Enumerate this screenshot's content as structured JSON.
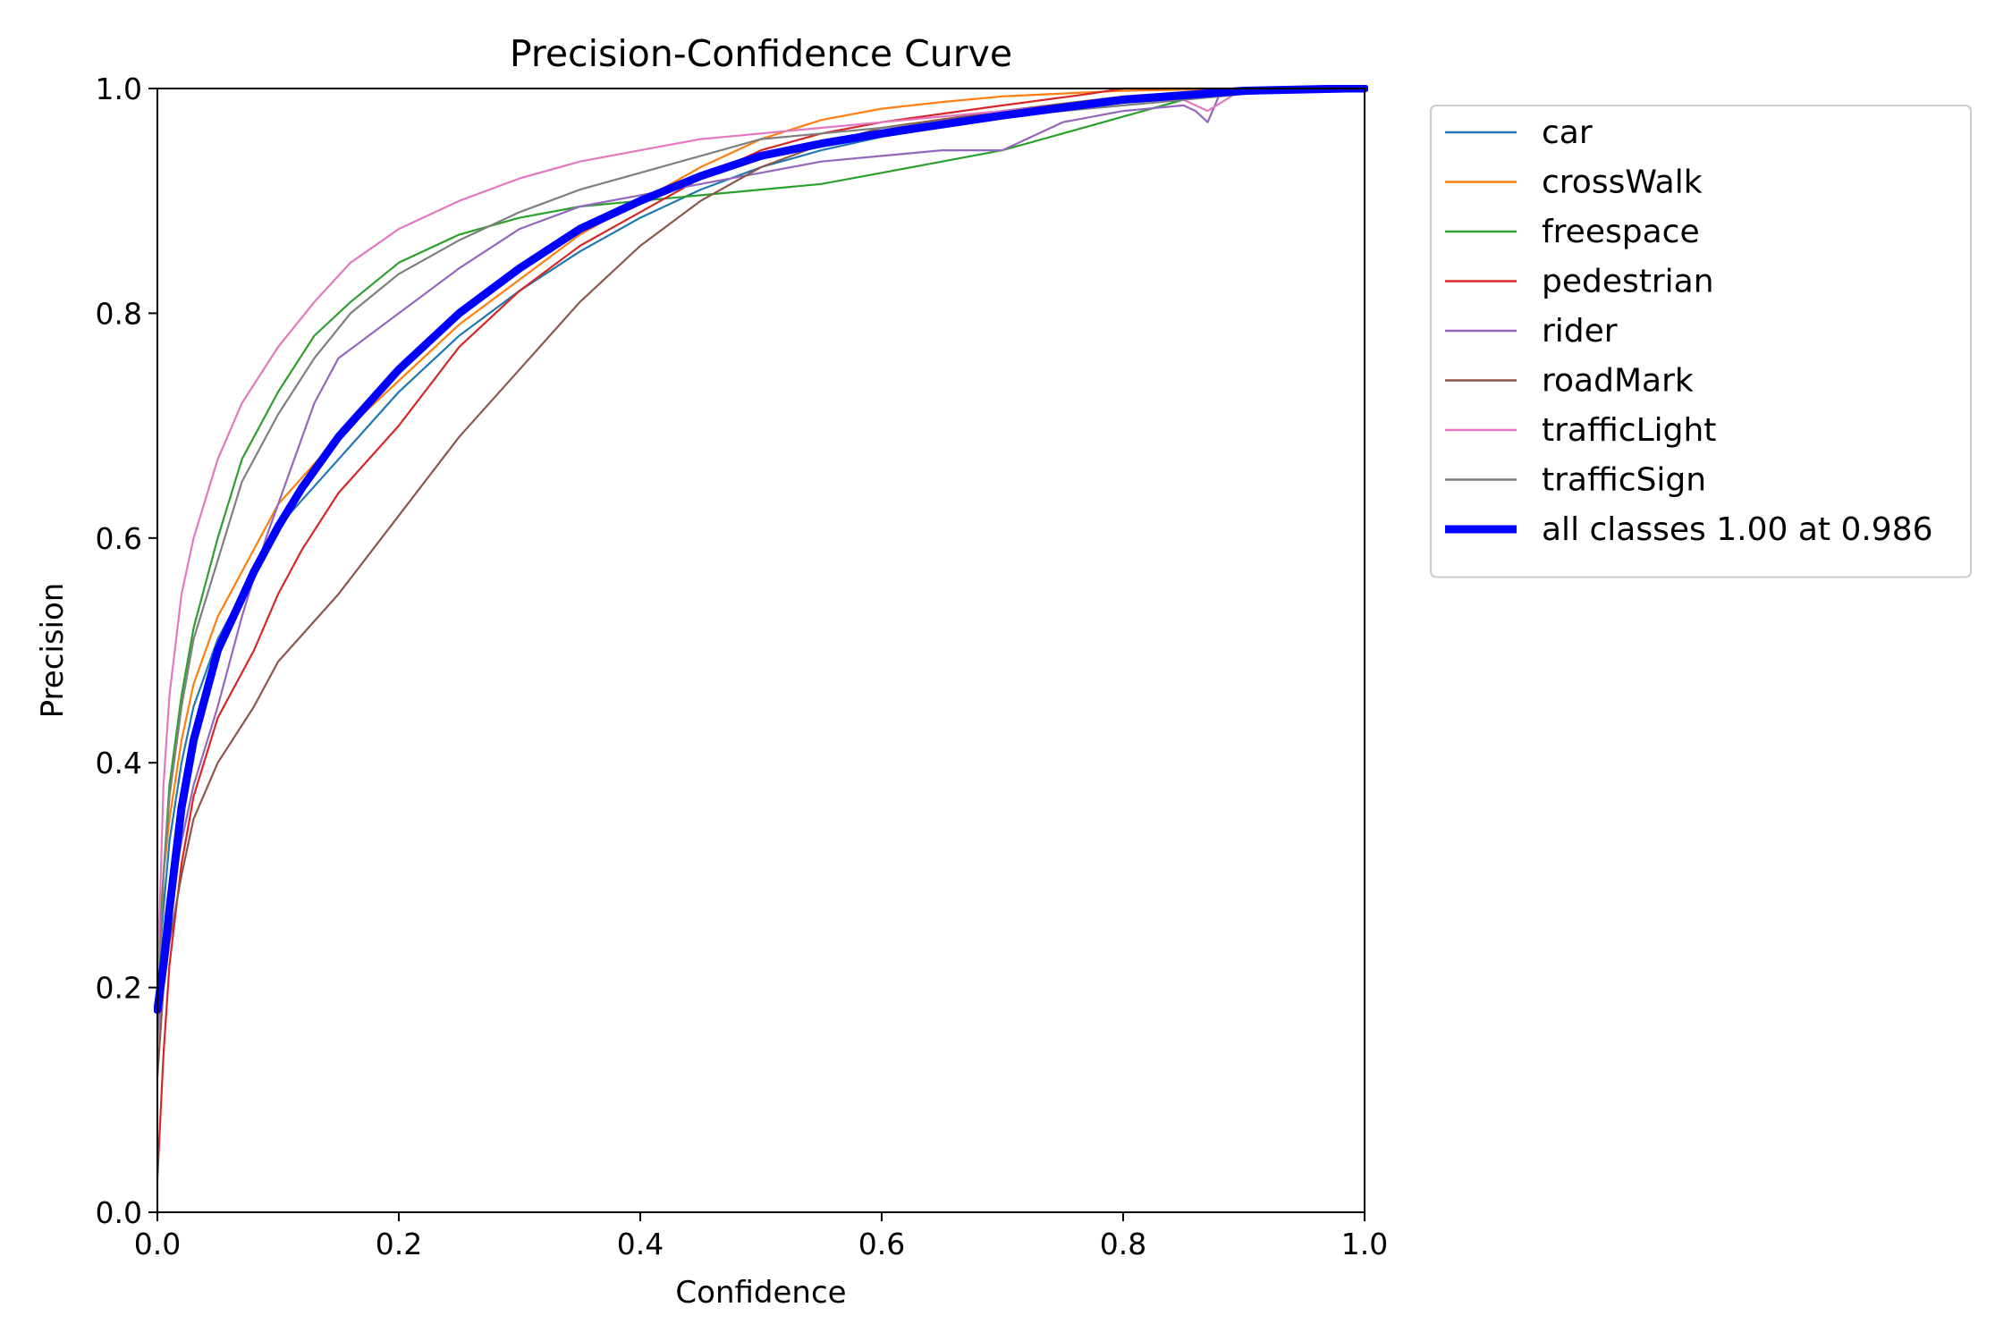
{
  "chart_data": {
    "type": "line",
    "title": "Precision-Confidence Curve",
    "xlabel": "Confidence",
    "ylabel": "Precision",
    "xlim": [
      0,
      1
    ],
    "ylim": [
      0,
      1
    ],
    "xticks": [
      "0.0",
      "0.2",
      "0.4",
      "0.6",
      "0.8",
      "1.0"
    ],
    "yticks": [
      "0.0",
      "0.2",
      "0.4",
      "0.6",
      "0.8",
      "1.0"
    ],
    "grid": false,
    "legend_position": "outside upper right",
    "series": [
      {
        "name": "car",
        "color": "#1f77b4",
        "width": "thin",
        "x": [
          0,
          0.005,
          0.01,
          0.02,
          0.03,
          0.05,
          0.08,
          0.1,
          0.15,
          0.2,
          0.25,
          0.3,
          0.35,
          0.4,
          0.45,
          0.5,
          0.55,
          0.6,
          0.7,
          0.8,
          0.9,
          0.95,
          1.0
        ],
        "y": [
          0.2,
          0.27,
          0.33,
          0.4,
          0.45,
          0.51,
          0.57,
          0.61,
          0.67,
          0.73,
          0.78,
          0.82,
          0.855,
          0.885,
          0.91,
          0.93,
          0.945,
          0.957,
          0.975,
          0.99,
          0.998,
          1.0,
          1.0
        ]
      },
      {
        "name": "crossWalk",
        "color": "#ff7f0e",
        "width": "thin",
        "x": [
          0,
          0.005,
          0.01,
          0.02,
          0.03,
          0.05,
          0.08,
          0.1,
          0.15,
          0.2,
          0.25,
          0.3,
          0.35,
          0.4,
          0.45,
          0.5,
          0.55,
          0.6,
          0.65,
          0.7,
          0.8,
          0.9,
          1.0
        ],
        "y": [
          0.22,
          0.3,
          0.35,
          0.42,
          0.47,
          0.53,
          0.59,
          0.63,
          0.69,
          0.74,
          0.79,
          0.83,
          0.87,
          0.9,
          0.93,
          0.955,
          0.972,
          0.982,
          0.988,
          0.993,
          0.998,
          1.0,
          1.0
        ]
      },
      {
        "name": "freespace",
        "color": "#2ca02c",
        "width": "thin",
        "x": [
          0,
          0.005,
          0.01,
          0.02,
          0.03,
          0.05,
          0.07,
          0.1,
          0.13,
          0.16,
          0.2,
          0.25,
          0.3,
          0.35,
          0.4,
          0.45,
          0.5,
          0.55,
          0.6,
          0.65,
          0.7,
          0.75,
          0.8,
          0.85,
          0.9,
          1.0
        ],
        "y": [
          0.2,
          0.3,
          0.38,
          0.46,
          0.52,
          0.6,
          0.67,
          0.73,
          0.78,
          0.81,
          0.845,
          0.87,
          0.885,
          0.895,
          0.9,
          0.905,
          0.91,
          0.915,
          0.925,
          0.935,
          0.945,
          0.96,
          0.975,
          0.99,
          0.998,
          1.0
        ]
      },
      {
        "name": "pedestrian",
        "color": "#d62728",
        "width": "thin",
        "x": [
          0,
          0.005,
          0.01,
          0.02,
          0.03,
          0.05,
          0.08,
          0.1,
          0.12,
          0.15,
          0.2,
          0.25,
          0.3,
          0.35,
          0.4,
          0.45,
          0.5,
          0.55,
          0.6,
          0.7,
          0.77,
          0.8,
          0.9,
          1.0
        ],
        "y": [
          0.03,
          0.14,
          0.22,
          0.31,
          0.37,
          0.44,
          0.5,
          0.55,
          0.59,
          0.64,
          0.7,
          0.77,
          0.82,
          0.86,
          0.89,
          0.92,
          0.945,
          0.96,
          0.97,
          0.985,
          0.995,
          1.0,
          1.0,
          1.0
        ]
      },
      {
        "name": "rider",
        "color": "#9467bd",
        "width": "thin",
        "x": [
          0,
          0.005,
          0.01,
          0.02,
          0.03,
          0.05,
          0.07,
          0.09,
          0.11,
          0.13,
          0.15,
          0.2,
          0.25,
          0.3,
          0.35,
          0.4,
          0.45,
          0.5,
          0.55,
          0.6,
          0.65,
          0.7,
          0.75,
          0.8,
          0.85,
          0.86,
          0.87,
          0.88,
          0.9,
          1.0
        ],
        "y": [
          0.15,
          0.22,
          0.27,
          0.33,
          0.38,
          0.45,
          0.53,
          0.6,
          0.66,
          0.72,
          0.76,
          0.8,
          0.84,
          0.875,
          0.895,
          0.905,
          0.915,
          0.925,
          0.935,
          0.94,
          0.945,
          0.945,
          0.97,
          0.98,
          0.985,
          0.98,
          0.97,
          0.995,
          1.0,
          1.0
        ]
      },
      {
        "name": "roadMark",
        "color": "#8c564b",
        "width": "thin",
        "x": [
          0,
          0.005,
          0.01,
          0.02,
          0.03,
          0.05,
          0.08,
          0.1,
          0.15,
          0.2,
          0.25,
          0.3,
          0.35,
          0.4,
          0.45,
          0.5,
          0.55,
          0.6,
          0.7,
          0.8,
          0.9,
          1.0
        ],
        "y": [
          0.12,
          0.2,
          0.24,
          0.3,
          0.35,
          0.4,
          0.45,
          0.49,
          0.55,
          0.62,
          0.69,
          0.75,
          0.81,
          0.86,
          0.9,
          0.93,
          0.95,
          0.965,
          0.98,
          0.993,
          1.0,
          1.0
        ]
      },
      {
        "name": "trafficLight",
        "color": "#e377c2",
        "width": "thin",
        "x": [
          0,
          0.005,
          0.01,
          0.02,
          0.03,
          0.05,
          0.07,
          0.1,
          0.13,
          0.16,
          0.2,
          0.25,
          0.3,
          0.35,
          0.4,
          0.45,
          0.5,
          0.55,
          0.6,
          0.7,
          0.8,
          0.85,
          0.87,
          0.9,
          1.0
        ],
        "y": [
          0.2,
          0.38,
          0.46,
          0.55,
          0.6,
          0.67,
          0.72,
          0.77,
          0.81,
          0.845,
          0.875,
          0.9,
          0.92,
          0.935,
          0.945,
          0.955,
          0.96,
          0.965,
          0.97,
          0.98,
          0.99,
          0.99,
          0.98,
          1.0,
          1.0
        ]
      },
      {
        "name": "trafficSign",
        "color": "#7f7f7f",
        "width": "thin",
        "x": [
          0,
          0.005,
          0.01,
          0.02,
          0.03,
          0.05,
          0.07,
          0.1,
          0.13,
          0.16,
          0.2,
          0.25,
          0.3,
          0.35,
          0.4,
          0.45,
          0.5,
          0.55,
          0.6,
          0.7,
          0.8,
          0.85,
          0.9,
          0.95,
          1.0
        ],
        "y": [
          0.15,
          0.3,
          0.37,
          0.45,
          0.51,
          0.58,
          0.65,
          0.71,
          0.76,
          0.8,
          0.835,
          0.865,
          0.89,
          0.91,
          0.925,
          0.94,
          0.955,
          0.96,
          0.965,
          0.975,
          0.985,
          0.99,
          0.995,
          0.998,
          1.0
        ]
      },
      {
        "name": "all classes 1.00 at 0.986",
        "color": "#0000ff",
        "width": "thick",
        "x": [
          0,
          0.005,
          0.01,
          0.02,
          0.03,
          0.05,
          0.08,
          0.1,
          0.12,
          0.15,
          0.2,
          0.25,
          0.3,
          0.35,
          0.4,
          0.45,
          0.5,
          0.55,
          0.6,
          0.7,
          0.8,
          0.9,
          0.986,
          1.0
        ],
        "y": [
          0.18,
          0.22,
          0.27,
          0.36,
          0.42,
          0.5,
          0.57,
          0.61,
          0.645,
          0.69,
          0.75,
          0.8,
          0.84,
          0.875,
          0.9,
          0.922,
          0.94,
          0.951,
          0.96,
          0.976,
          0.99,
          0.998,
          1.0,
          1.0
        ]
      }
    ]
  }
}
